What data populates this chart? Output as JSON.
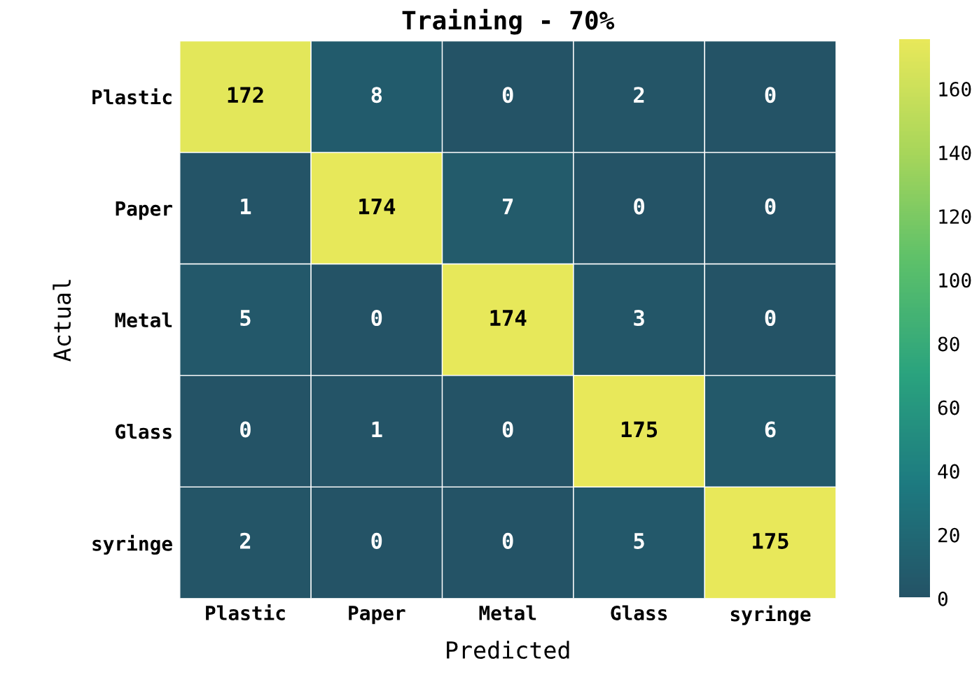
{
  "chart_data": {
    "type": "heatmap",
    "title": "Training - 70%",
    "xlabel": "Predicted",
    "ylabel": "Actual",
    "categories": [
      "Plastic",
      "Paper",
      "Metal",
      "Glass",
      "syringe"
    ],
    "y_categories": [
      "Plastic",
      "Paper",
      "Metal",
      "Glass",
      "syringe"
    ],
    "cells": [
      [
        172,
        8,
        0,
        2,
        0
      ],
      [
        1,
        174,
        7,
        0,
        0
      ],
      [
        5,
        0,
        174,
        3,
        0
      ],
      [
        0,
        1,
        0,
        175,
        6
      ],
      [
        2,
        0,
        0,
        5,
        175
      ]
    ],
    "data_labels": true,
    "clim": [
      0,
      175
    ],
    "cticks": [
      0,
      20,
      40,
      60,
      80,
      100,
      120,
      140,
      160
    ]
  }
}
